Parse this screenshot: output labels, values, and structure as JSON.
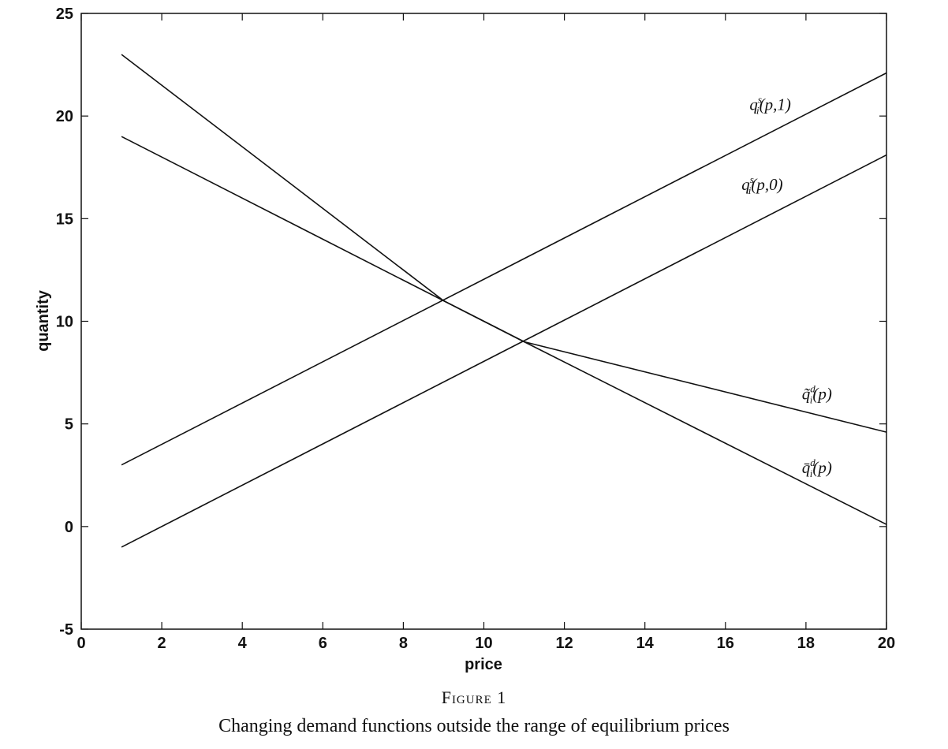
{
  "figure": {
    "number": "Figure 1",
    "caption": "Changing demand functions outside the range of equilibrium prices"
  },
  "chart_data": {
    "type": "line",
    "title": "",
    "xlabel": "price",
    "ylabel": "quantity",
    "xlim": [
      0,
      20
    ],
    "ylim": [
      -5,
      25
    ],
    "xticks": [
      0,
      2,
      4,
      6,
      8,
      10,
      12,
      14,
      16,
      18,
      20
    ],
    "yticks": [
      -5,
      0,
      5,
      10,
      15,
      20,
      25
    ],
    "grid": false,
    "series": [
      {
        "label_main": "q",
        "label_sup": "s",
        "label_sub": "i",
        "label_args": "(p,1)",
        "x": [
          1,
          20
        ],
        "y": [
          3,
          22.1
        ]
      },
      {
        "label_main": "q",
        "label_sup": "s",
        "label_sub": "i",
        "label_args": "(p,0)",
        "x": [
          1,
          20
        ],
        "y": [
          -1,
          18.1
        ]
      },
      {
        "label_main": "q̃",
        "label_sup": "d",
        "label_sub": "i",
        "label_args": "(p)",
        "x": [
          1,
          9,
          11,
          20
        ],
        "y": [
          23,
          11,
          9,
          4.6
        ]
      },
      {
        "label_main": "q̄",
        "label_sup": "d",
        "label_sub": "i",
        "label_args": "(p)",
        "x": [
          1,
          9,
          11,
          20
        ],
        "y": [
          19,
          11,
          9,
          0.1
        ]
      }
    ]
  }
}
